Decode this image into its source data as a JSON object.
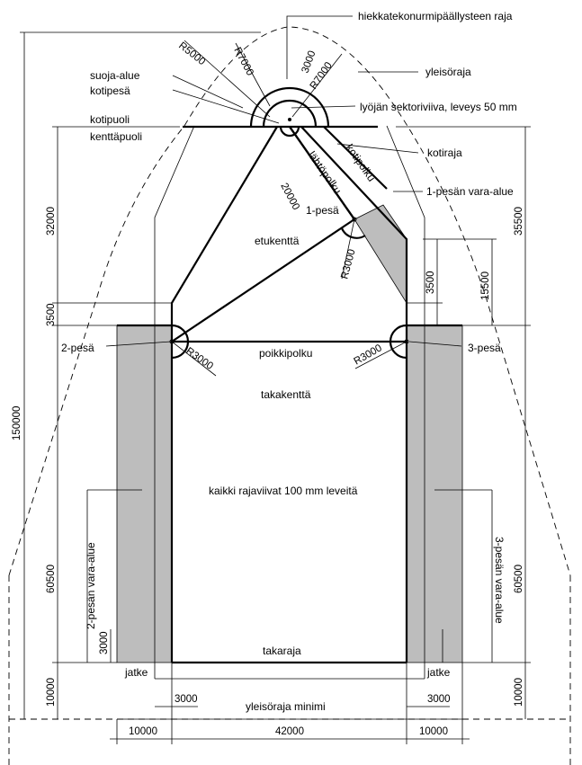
{
  "labels": {
    "hiekkatekonurmi": "hiekkatekonurmipäällysteen raja",
    "yleisoraja": "yleisöraja",
    "suoja_alue": "suoja-alue",
    "kotipesa": "kotipesä",
    "lyojan_sektoriviiva": "lyöjän sektoriviiva, leveys 50 mm",
    "kotipuoli": "kotipuoli",
    "kenttapuoli": "kenttäpuoli",
    "kotiraja": "kotiraja",
    "pesa1_vara_alue": "1-pesän vara-alue",
    "pesa1": "1-pesä",
    "etukentta": "etukenttä",
    "kotipolku": "kotipolku",
    "lahtopolku": "lähtöpolku",
    "pesa2": "2-pesä",
    "pesa3": "3-pesä",
    "poikkipolku": "poikkipolku",
    "takakentta": "takakenttä",
    "rajaviivat": "kaikki rajaviivat 100 mm leveitä",
    "pesa2_vara_alue": "2-pesän vara-alue",
    "pesa3_vara_alue": "3-pesän vara-alue",
    "takaraja": "takaraja",
    "jatke_left": "jatke",
    "jatke_right": "jatke",
    "yleisoraja_minimi": "yleisöraja minimi"
  },
  "radii": {
    "r5000": "R5000",
    "r7000_left": "R7000",
    "r3000_top": "3000",
    "r7000_right": "R7000",
    "r3000_pesa1": "R3000",
    "r3000_pesa2": "R3000",
    "r3000_pesa3": "R3000"
  },
  "dimensions": {
    "d32000": "32000",
    "d3500_left": "3500",
    "d150000": "150000",
    "d60500_left": "60500",
    "d3000_left": "3000",
    "d10000_left": "10000",
    "d35500": "35500",
    "d15500": "15500",
    "d3500_right": "3500",
    "d60500_right": "60500",
    "d10000_right": "10000",
    "d20000": "20000",
    "d3000_bottom_left": "3000",
    "d3000_bottom_right": "3000",
    "d10000_bottom_left": "10000",
    "d42000": "42000",
    "d10000_bottom_right": "10000"
  },
  "colors": {
    "vara_alue_fill": "#bdbdbd",
    "line": "#000000"
  }
}
